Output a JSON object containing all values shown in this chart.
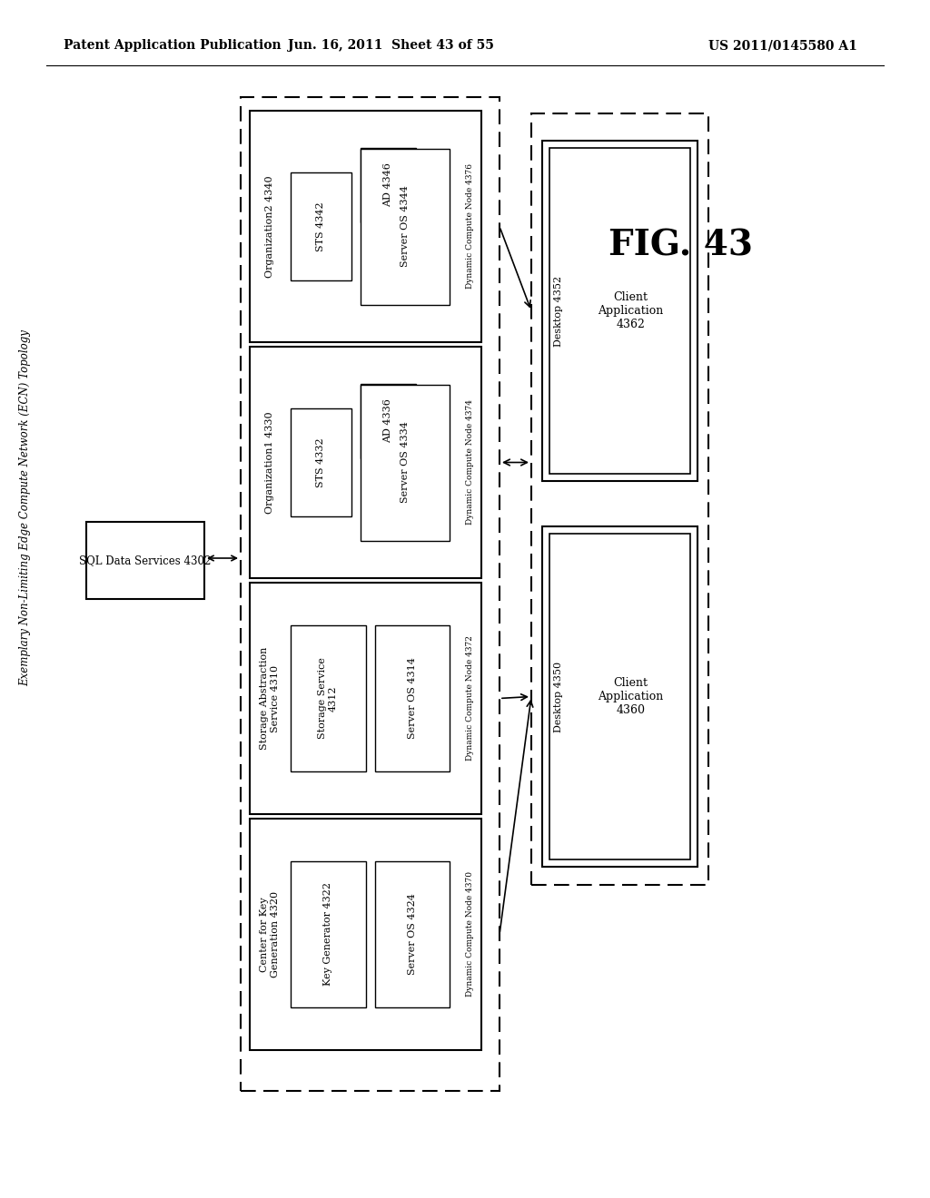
{
  "header_left": "Patent Application Publication",
  "header_mid": "Jun. 16, 2011  Sheet 43 of 55",
  "header_right": "US 2011/0145580 A1",
  "side_label": "Exemplary Non-Limiting Edge Compute Network (ECN) Topology",
  "fig_label": "FIG. 43",
  "sql_label": "SQL Data Services 4302",
  "rows": [
    {
      "title": "Organization2 4340",
      "box1_label": "STS 4342",
      "box2_label": "AD 4346",
      "box3_label": "Server OS 4344",
      "right_label": "Dynamic Compute Node 4376",
      "has_sts_ad": true
    },
    {
      "title": "Organization1 4330",
      "box1_label": "STS 4332",
      "box2_label": "AD 4336",
      "box3_label": "Server OS 4334",
      "right_label": "Dynamic Compute Node 4374",
      "has_sts_ad": true
    },
    {
      "title": "Storage Abstraction\nService 4310",
      "box1_label": "Storage Service\n4312",
      "box2_label": "Server OS 4314",
      "right_label": "Dynamic Compute Node 4372",
      "has_sts_ad": false
    },
    {
      "title": "Center for Key\nGeneration 4320",
      "box1_label": "Key Generator 4322",
      "box2_label": "Server OS 4324",
      "right_label": "Dynamic Compute Node 4370",
      "has_sts_ad": false
    }
  ],
  "desktop1": {
    "outer_label": "Desktop 4352",
    "inner_label": "Client\nApplication\n4362"
  },
  "desktop2": {
    "outer_label": "Desktop 4350",
    "inner_label": "Client\nApplication\n4360"
  }
}
